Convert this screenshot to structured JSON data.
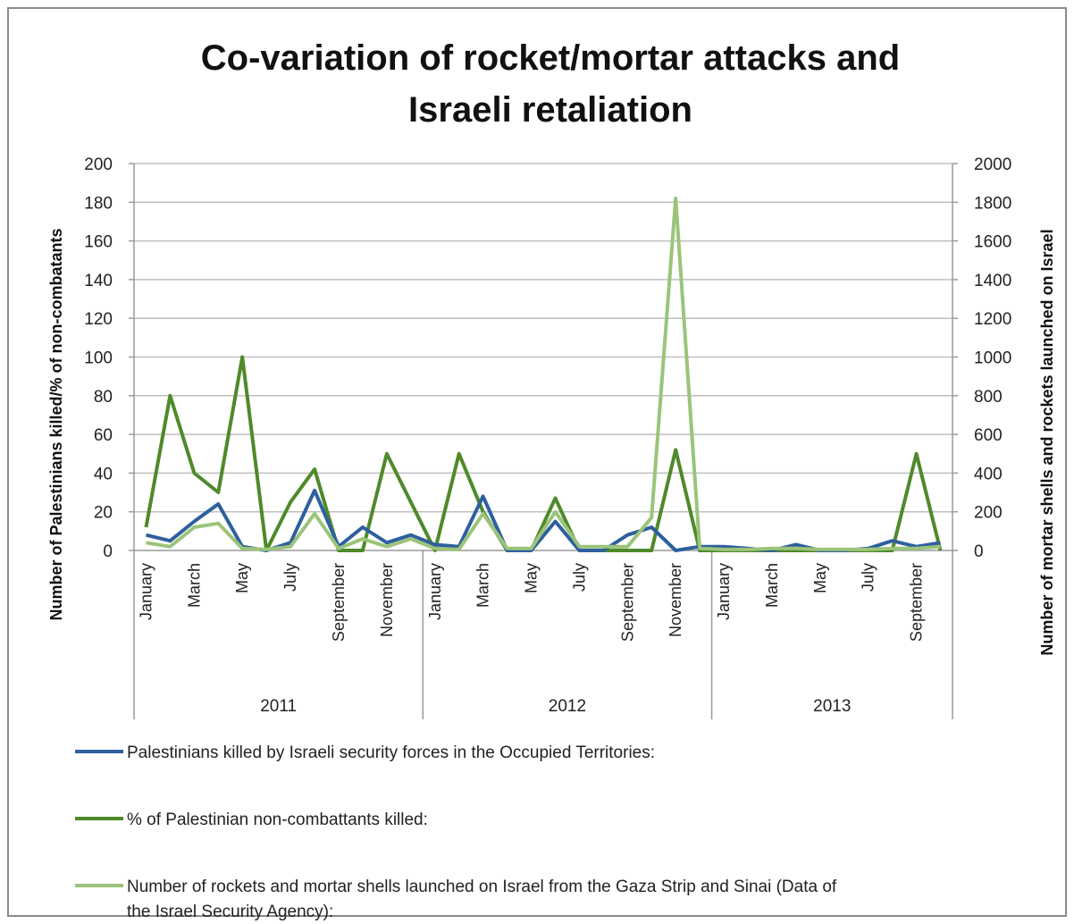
{
  "chart_data": {
    "type": "line",
    "title_lines": [
      "Co-variation of rocket/mortar attacks and",
      "Israeli retaliation"
    ],
    "ylabel_left": "Number of Palestinians  killed/% of non-combatants",
    "ylabel_right": "Number of mortar shells and rockets launched on Israel",
    "ylim_left": [
      0,
      200
    ],
    "ylim_right": [
      0,
      2000
    ],
    "yticks_left": [
      "0",
      "20",
      "40",
      "60",
      "80",
      "100",
      "120",
      "140",
      "160",
      "180",
      "200"
    ],
    "yticks_right": [
      "0",
      "200",
      "400",
      "600",
      "800",
      "1000",
      "1200",
      "1400",
      "1600",
      "1800",
      "2000"
    ],
    "grid": true,
    "legend_position": "bottom",
    "x_month_labels": [
      {
        "index": 0,
        "label": "January"
      },
      {
        "index": 2,
        "label": "March"
      },
      {
        "index": 4,
        "label": "May"
      },
      {
        "index": 6,
        "label": "July"
      },
      {
        "index": 8,
        "label": "September"
      },
      {
        "index": 10,
        "label": "November"
      },
      {
        "index": 12,
        "label": "January"
      },
      {
        "index": 14,
        "label": "March"
      },
      {
        "index": 16,
        "label": "May"
      },
      {
        "index": 18,
        "label": "July"
      },
      {
        "index": 20,
        "label": "September"
      },
      {
        "index": 22,
        "label": "November"
      },
      {
        "index": 24,
        "label": "January"
      },
      {
        "index": 26,
        "label": "March"
      },
      {
        "index": 28,
        "label": "May"
      },
      {
        "index": 30,
        "label": "July"
      },
      {
        "index": 32,
        "label": "September"
      }
    ],
    "year_groups": [
      {
        "label": "2011",
        "start": 0,
        "end": 11
      },
      {
        "label": "2012",
        "start": 12,
        "end": 23
      },
      {
        "label": "2013",
        "start": 24,
        "end": 33
      }
    ],
    "series": [
      {
        "name": "Palestinians killed by Israeli security forces in the Occupied Territories:",
        "color": "#2e5f9e",
        "axis": "left",
        "values": [
          8,
          5,
          15,
          24,
          2,
          0,
          4,
          31,
          2,
          12,
          4,
          8,
          3,
          2,
          28,
          0,
          0,
          15,
          0,
          0,
          8,
          12,
          0,
          2,
          2,
          1,
          0,
          3,
          0,
          0,
          1,
          5,
          2,
          4
        ]
      },
      {
        "name": "% of Palestinian non-combattants killed:",
        "color": "#4e8a2a",
        "axis": "left",
        "values": [
          12,
          80,
          40,
          30,
          100,
          0,
          25,
          42,
          0,
          0,
          50,
          25,
          0,
          50,
          20,
          0,
          0,
          27,
          0,
          0,
          0,
          0,
          52,
          0,
          0,
          0,
          0,
          0,
          0,
          0,
          0,
          0,
          50,
          0
        ]
      },
      {
        "name": "Number of rockets and mortar shells launched on Israel from the Gaza Strip and Sinai (Data of the Israel Security Agency):",
        "color": "#9bc47a",
        "axis": "right",
        "values": [
          40,
          20,
          120,
          140,
          10,
          5,
          20,
          190,
          10,
          60,
          20,
          60,
          10,
          5,
          190,
          10,
          10,
          200,
          20,
          20,
          20,
          170,
          1820,
          10,
          5,
          5,
          10,
          10,
          5,
          5,
          5,
          10,
          10,
          20
        ]
      }
    ],
    "legend_lines": [
      [
        "Palestinians killed by Israeli security forces in the Occupied Territories:"
      ],
      [
        "% of Palestinian non-combattants killed:"
      ],
      [
        "Number of rockets and mortar shells launched on Israel from the Gaza Strip and Sinai (Data of",
        "the Israel Security Agency):"
      ]
    ]
  }
}
